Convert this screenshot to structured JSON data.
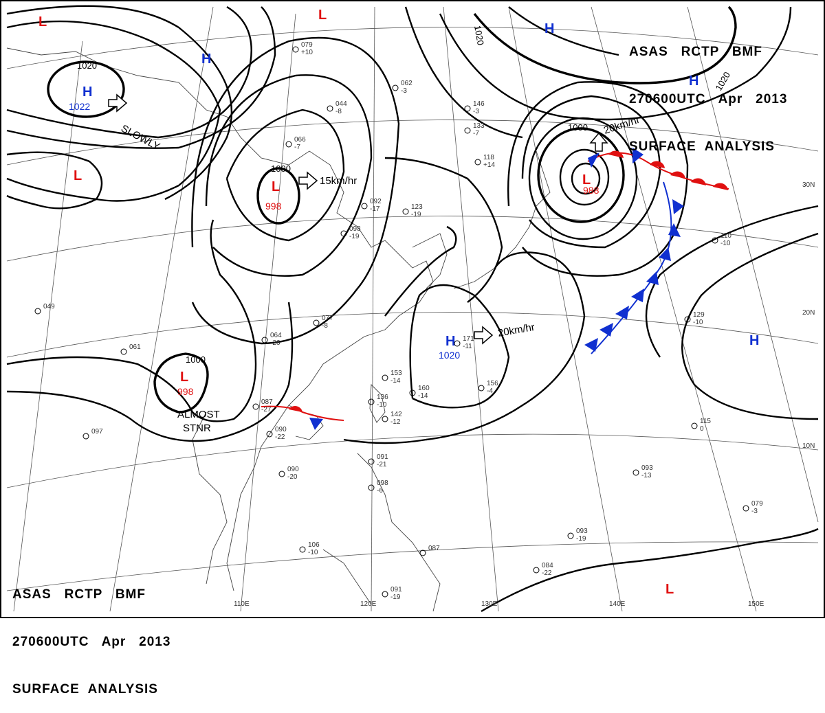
{
  "header_top": {
    "line1": "ASAS   RCTP   BMF",
    "line2": "270600UTC   Apr   2013",
    "line3": "SURFACE  ANALYSIS"
  },
  "header_bottom": {
    "line1": "ASAS   RCTP   BMF",
    "line2": "270600UTC   Apr   2013",
    "line3": "SURFACE  ANALYSIS"
  },
  "longitude_labels": [
    "110E",
    "120E",
    "130E",
    "140E",
    "150E"
  ],
  "latitude_labels": [
    "30N",
    "20N",
    "10N"
  ],
  "isobar_labels": [
    "1020",
    "1000",
    "1000",
    "1000",
    "1020",
    "1020"
  ],
  "pressure_centers": [
    {
      "type": "H",
      "value": "1022",
      "motion": "SLOWLY"
    },
    {
      "type": "L",
      "value": "998",
      "motion": "15km/hr"
    },
    {
      "type": "L",
      "value": "998",
      "motion": "ALMOST STNR"
    },
    {
      "type": "L",
      "value": "988",
      "motion": "20km/hr"
    },
    {
      "type": "H",
      "value": "1020",
      "motion": "20km/hr"
    },
    {
      "type": "H",
      "value": "",
      "motion": ""
    },
    {
      "type": "H",
      "value": "",
      "motion": ""
    },
    {
      "type": "H",
      "value": "",
      "motion": ""
    },
    {
      "type": "H",
      "value": "",
      "motion": ""
    },
    {
      "type": "L",
      "value": "",
      "motion": ""
    },
    {
      "type": "L",
      "value": "",
      "motion": ""
    },
    {
      "type": "L",
      "value": "",
      "motion": ""
    },
    {
      "type": "L",
      "value": "",
      "motion": ""
    }
  ],
  "motion_labels": {
    "h1022": "SLOWLY",
    "l998a": "15km/hr",
    "l998b_1": "ALMOST",
    "l998b_2": "STNR",
    "l988": "20km/hr",
    "h1020": "20km/hr"
  },
  "colors": {
    "high": "#1030d0",
    "low": "#e01010",
    "cold_front": "#1030d0",
    "warm_front": "#e01010",
    "isobar": "#000000"
  },
  "fronts": [
    {
      "kind": "warm",
      "color": "#e01010"
    },
    {
      "kind": "cold",
      "color": "#1030d0"
    },
    {
      "kind": "stationary",
      "color": "mixed"
    }
  ],
  "station_samples": [
    {
      "a": "079",
      "b": "+10"
    },
    {
      "a": "066",
      "b": "-7"
    },
    {
      "a": "044",
      "b": "-8"
    },
    {
      "a": "062",
      "b": "-3"
    },
    {
      "a": "092",
      "b": "-17"
    },
    {
      "a": "123",
      "b": "-19"
    },
    {
      "a": "098",
      "b": "-19"
    },
    {
      "a": "077",
      "b": "-8"
    },
    {
      "a": "064",
      "b": "-26"
    },
    {
      "a": "087",
      "b": "-27"
    },
    {
      "a": "090",
      "b": "-22"
    },
    {
      "a": "090",
      "b": "-20"
    },
    {
      "a": "091",
      "b": "-21"
    },
    {
      "a": "153",
      "b": "-14"
    },
    {
      "a": "160",
      "b": "-14"
    },
    {
      "a": "142",
      "b": "-12"
    },
    {
      "a": "136",
      "b": "-10"
    },
    {
      "a": "171",
      "b": "-11"
    },
    {
      "a": "156",
      "b": "-4"
    },
    {
      "a": "093",
      "b": "-13"
    },
    {
      "a": "093",
      "b": "-19"
    },
    {
      "a": "084",
      "b": "-22"
    },
    {
      "a": "079",
      "b": "-3"
    },
    {
      "a": "129",
      "b": "-10"
    },
    {
      "a": "110",
      "b": "-10"
    },
    {
      "a": "115",
      "b": "0"
    },
    {
      "a": "118",
      "b": "+14"
    },
    {
      "a": "133",
      "b": "-7"
    },
    {
      "a": "146",
      "b": "-3"
    },
    {
      "a": "097",
      "b": ""
    },
    {
      "a": "061",
      "b": ""
    },
    {
      "a": "049",
      "b": ""
    },
    {
      "a": "106",
      "b": "-10"
    },
    {
      "a": "098",
      "b": "-6"
    },
    {
      "a": "087",
      "b": ""
    },
    {
      "a": "091",
      "b": "-19"
    }
  ]
}
